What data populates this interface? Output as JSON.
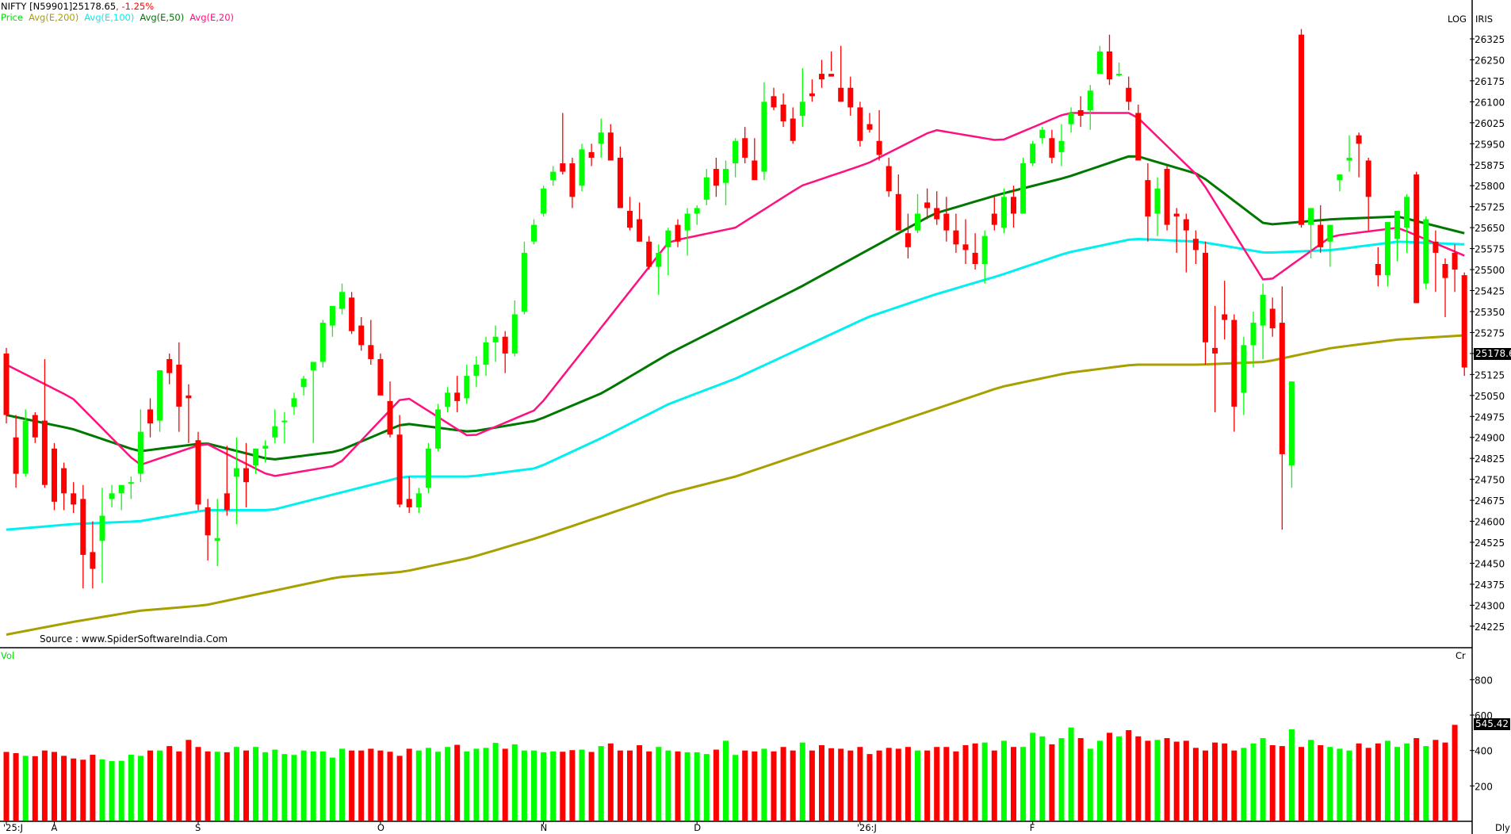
{
  "header": {
    "symbol": "NIFTY [N59901]25178.65",
    "change": ", -1.25%",
    "change_color": "#ff0000",
    "legend": [
      {
        "label": "Price",
        "color": "#00dd00"
      },
      {
        "label": "Avg(E,200)",
        "color": "#a8a000"
      },
      {
        "label": "Avg(E,100)",
        "color": "#00f0f0"
      },
      {
        "label": "Avg(E,50)",
        "color": "#007700"
      },
      {
        "label": "Avg(E,20)",
        "color": "#ff1080"
      }
    ]
  },
  "corner": {
    "log": "LOG",
    "iris": "IRIS",
    "cr": "Cr",
    "dly": "Dly"
  },
  "watermark": "Source : www.SpiderSoftwareIndia.Com",
  "volume_label": "Vol",
  "last_price_label": "25178.6",
  "last_volume_label": "545.42",
  "colors": {
    "up": "#00ff00",
    "down": "#ff0000",
    "ema20": "#ff1080",
    "ema50": "#007700",
    "ema100": "#00f0f0",
    "ema200": "#a8a000"
  },
  "chart_data": [
    {
      "type": "candlestick",
      "title": "NIFTY [N59901] 25178.65, -1.25%",
      "scale": "log",
      "ylim": [
        24150,
        26400
      ],
      "y_ticks": [
        26325,
        26250,
        26175,
        26100,
        26025,
        25950,
        25875,
        25800,
        25725,
        25650,
        25575,
        25500,
        25425,
        25350,
        25275,
        25200,
        25125,
        25050,
        24975,
        24900,
        24825,
        24750,
        24675,
        24600,
        24525,
        24450,
        24375,
        24300,
        24225
      ],
      "x_tick_labels": [
        {
          "label": "'25:J",
          "index": 0
        },
        {
          "label": "A",
          "index": 5
        },
        {
          "label": "S",
          "index": 20
        },
        {
          "label": "O",
          "index": 39
        },
        {
          "label": "N",
          "index": 56
        },
        {
          "label": "D",
          "index": 72
        },
        {
          "label": "'26:J",
          "index": 89
        },
        {
          "label": "F",
          "index": 107
        }
      ],
      "legend": [
        "Price",
        "Avg(E,200)",
        "Avg(E,100)",
        "Avg(E,50)",
        "Avg(E,20)"
      ],
      "ohlc_approx": [
        [
          25200,
          25220,
          24950,
          24980
        ],
        [
          24900,
          24980,
          24720,
          24770
        ],
        [
          24770,
          25000,
          24760,
          24960
        ],
        [
          24980,
          24990,
          24880,
          24900
        ],
        [
          24960,
          25180,
          24720,
          24730
        ],
        [
          24860,
          24880,
          24640,
          24670
        ],
        [
          24790,
          24810,
          24640,
          24700
        ],
        [
          24700,
          24740,
          24630,
          24660
        ],
        [
          24680,
          24730,
          24360,
          24480
        ],
        [
          24490,
          24600,
          24360,
          24430
        ],
        [
          24530,
          24720,
          24380,
          24620
        ],
        [
          24680,
          24730,
          24650,
          24700
        ],
        [
          24700,
          24720,
          24640,
          24730
        ],
        [
          24740,
          24760,
          24680,
          24740
        ],
        [
          24770,
          25000,
          24740,
          24920
        ],
        [
          25000,
          25040,
          24900,
          24950
        ],
        [
          24960,
          25140,
          24920,
          25140
        ],
        [
          25180,
          25200,
          25090,
          25130
        ],
        [
          25160,
          25240,
          24920,
          25010
        ],
        [
          25050,
          25090,
          24880,
          25040
        ],
        [
          24890,
          24920,
          24640,
          24660
        ],
        [
          24650,
          24680,
          24460,
          24550
        ],
        [
          24530,
          24680,
          24440,
          24540
        ],
        [
          24700,
          24870,
          24620,
          24640
        ],
        [
          24760,
          24900,
          24590,
          24790
        ],
        [
          24790,
          24880,
          24650,
          24740
        ],
        [
          24800,
          24860,
          24770,
          24860
        ],
        [
          24860,
          24890,
          24810,
          24870
        ],
        [
          24900,
          25000,
          24880,
          24940
        ],
        [
          24960,
          24990,
          24880,
          24960
        ],
        [
          25010,
          25060,
          24980,
          25040
        ],
        [
          25080,
          25120,
          25050,
          25110
        ],
        [
          25140,
          25160,
          24880,
          25170
        ],
        [
          25170,
          25320,
          25150,
          25310
        ],
        [
          25300,
          25360,
          25260,
          25370
        ],
        [
          25360,
          25450,
          25340,
          25420
        ],
        [
          25400,
          25420,
          25270,
          25280
        ],
        [
          25300,
          25330,
          25210,
          25230
        ],
        [
          25230,
          25320,
          25160,
          25180
        ],
        [
          25180,
          25200,
          25080,
          25050
        ],
        [
          25030,
          25100,
          24900,
          24910
        ],
        [
          24910,
          24980,
          24650,
          24660
        ],
        [
          24680,
          24760,
          24630,
          24650
        ],
        [
          24650,
          24720,
          24630,
          24700
        ],
        [
          24720,
          24880,
          24700,
          24860
        ],
        [
          24860,
          25020,
          24850,
          25000
        ],
        [
          25010,
          25080,
          24990,
          25060
        ],
        [
          25060,
          25120,
          24990,
          25030
        ],
        [
          25040,
          25160,
          25020,
          25120
        ],
        [
          25120,
          25190,
          25080,
          25160
        ],
        [
          25160,
          25260,
          25120,
          25240
        ],
        [
          25240,
          25300,
          25170,
          25260
        ],
        [
          25260,
          25280,
          25130,
          25200
        ],
        [
          25200,
          25390,
          25190,
          25340
        ],
        [
          25350,
          25600,
          25340,
          25560
        ],
        [
          25600,
          25680,
          25590,
          25660
        ],
        [
          25700,
          25800,
          25690,
          25790
        ],
        [
          25820,
          25870,
          25800,
          25850
        ],
        [
          25880,
          26060,
          25840,
          25850
        ],
        [
          25880,
          25900,
          25720,
          25760
        ],
        [
          25800,
          25950,
          25780,
          25930
        ],
        [
          25920,
          25950,
          25870,
          25900
        ],
        [
          25950,
          26040,
          25900,
          25990
        ],
        [
          25990,
          26020,
          25900,
          25890
        ],
        [
          25900,
          25940,
          25760,
          25720
        ],
        [
          25710,
          25760,
          25640,
          25650
        ],
        [
          25680,
          25740,
          25600,
          25600
        ],
        [
          25600,
          25620,
          25500,
          25510
        ],
        [
          25510,
          25590,
          25410,
          25560
        ],
        [
          25580,
          25650,
          25480,
          25640
        ],
        [
          25660,
          25680,
          25580,
          25600
        ],
        [
          25640,
          25720,
          25550,
          25700
        ],
        [
          25700,
          25730,
          25660,
          25720
        ],
        [
          25750,
          25860,
          25730,
          25830
        ],
        [
          25860,
          25900,
          25760,
          25800
        ],
        [
          25810,
          25890,
          25730,
          25860
        ],
        [
          25880,
          25970,
          25830,
          25960
        ],
        [
          25970,
          26010,
          25880,
          25900
        ],
        [
          25890,
          25970,
          25820,
          25820
        ],
        [
          25850,
          26170,
          25820,
          26100
        ],
        [
          26120,
          26150,
          26070,
          26080
        ],
        [
          26090,
          26130,
          26010,
          26030
        ],
        [
          26040,
          26080,
          25950,
          25960
        ],
        [
          26050,
          26220,
          26010,
          26100
        ],
        [
          26130,
          26180,
          26100,
          26120
        ],
        [
          26200,
          26250,
          26150,
          26180
        ],
        [
          26200,
          26280,
          26210,
          26190
        ],
        [
          26150,
          26300,
          26100,
          26100
        ],
        [
          26150,
          26190,
          26050,
          26080
        ],
        [
          26080,
          26100,
          25940,
          25960
        ],
        [
          26020,
          26060,
          25990,
          26000
        ],
        [
          25960,
          26070,
          25890,
          25910
        ],
        [
          25870,
          25900,
          25760,
          25780
        ],
        [
          25770,
          25840,
          25640,
          25640
        ],
        [
          25630,
          25700,
          25540,
          25580
        ],
        [
          25640,
          25770,
          25630,
          25700
        ],
        [
          25740,
          25790,
          25680,
          25720
        ],
        [
          25720,
          25780,
          25660,
          25680
        ],
        [
          25700,
          25760,
          25600,
          25640
        ],
        [
          25640,
          25700,
          25560,
          25590
        ],
        [
          25590,
          25680,
          25520,
          25570
        ],
        [
          25560,
          25630,
          25500,
          25520
        ],
        [
          25520,
          25640,
          25450,
          25620
        ],
        [
          25700,
          25760,
          25640,
          25660
        ],
        [
          25650,
          25790,
          25630,
          25760
        ],
        [
          25760,
          25800,
          25650,
          25700
        ],
        [
          25700,
          25900,
          25700,
          25880
        ],
        [
          25880,
          25960,
          25870,
          25950
        ],
        [
          25970,
          26010,
          25950,
          26000
        ],
        [
          25970,
          26000,
          25880,
          25900
        ],
        [
          25920,
          26020,
          25870,
          25960
        ],
        [
          26020,
          26080,
          25990,
          26060
        ],
        [
          26070,
          26120,
          26010,
          26050
        ],
        [
          26070,
          26160,
          26000,
          26140
        ],
        [
          26200,
          26300,
          26200,
          26280
        ],
        [
          26280,
          26340,
          26160,
          26180
        ],
        [
          26200,
          26240,
          26190,
          26200
        ],
        [
          26150,
          26190,
          26070,
          26100
        ],
        [
          26060,
          26090,
          25900,
          25890
        ],
        [
          25820,
          25880,
          25600,
          25690
        ],
        [
          25700,
          25830,
          25620,
          25790
        ],
        [
          25860,
          25870,
          25640,
          25660
        ],
        [
          25700,
          25720,
          25560,
          25690
        ],
        [
          25680,
          25700,
          25490,
          25640
        ],
        [
          25610,
          25640,
          25520,
          25570
        ],
        [
          25560,
          25600,
          25160,
          25240
        ],
        [
          25220,
          25370,
          24990,
          25200
        ],
        [
          25340,
          25460,
          25250,
          25320
        ],
        [
          25320,
          25340,
          24920,
          25010
        ],
        [
          25060,
          25260,
          24980,
          25230
        ],
        [
          25230,
          25350,
          25150,
          25310
        ],
        [
          25300,
          25450,
          25180,
          25410
        ],
        [
          25360,
          25400,
          25260,
          25290
        ],
        [
          25310,
          25440,
          24570,
          24840
        ],
        [
          24800,
          25100,
          24720,
          25100
        ],
        [
          26340,
          26360,
          25650,
          25660
        ],
        [
          25660,
          25720,
          25540,
          25720
        ],
        [
          25660,
          25730,
          25560,
          25580
        ],
        [
          25600,
          25660,
          25510,
          25660
        ],
        [
          25820,
          25840,
          25780,
          25840
        ],
        [
          25890,
          25980,
          25850,
          25900
        ],
        [
          25980,
          25990,
          25830,
          25950
        ],
        [
          25890,
          25900,
          25640,
          25760
        ],
        [
          25520,
          25580,
          25440,
          25480
        ],
        [
          25480,
          25670,
          25440,
          25670
        ],
        [
          25610,
          25700,
          25530,
          25710
        ],
        [
          25650,
          25770,
          25560,
          25760
        ],
        [
          25840,
          25850,
          25400,
          25380
        ],
        [
          25450,
          25690,
          25430,
          25680
        ],
        [
          25600,
          25640,
          25420,
          25560
        ],
        [
          25520,
          25540,
          25330,
          25470
        ],
        [
          25560,
          25590,
          25420,
          25500
        ],
        [
          25480,
          25490,
          25120,
          25150
        ]
      ],
      "ema20_approx": [
        25170,
        25120,
        25080,
        25020,
        24960,
        24920,
        24860,
        24800,
        24760,
        24750,
        24760,
        24790,
        24830,
        24850,
        24840,
        24790,
        24760,
        24750,
        24750,
        24760,
        24810,
        24860,
        24940,
        25000,
        25040,
        25040,
        25000,
        24950,
        24910,
        24900,
        24920,
        24960,
        24990,
        25070,
        25160,
        25240,
        25330,
        25420,
        25500,
        25560,
        25580,
        25590,
        25600,
        25610,
        25650,
        25710,
        25760,
        25800,
        25810,
        25840,
        25850,
        25900,
        25920,
        25970,
        26010,
        26020,
        26000,
        26010,
        25990,
        25960,
        25970,
        25960,
        25980,
        25990,
        25960,
        25980,
        26010,
        26030,
        26040,
        26050,
        26070,
        26080,
        26070,
        26040,
        25980,
        25900,
        25830,
        25760,
        25680,
        25620,
        25570,
        25560,
        25540,
        25450,
        25430,
        25450,
        25460,
        25500,
        25540,
        25570,
        25610,
        25630,
        25620,
        25620,
        25630,
        25610,
        25600,
        25580,
        25570
      ],
      "series_notes": "EMA lines drawn approx; EMA200 rises from ~24200 to ~25270; EMA100 from ~24600 to ~25590; EMA50 ~24980 peak ~25930 end ~25630."
    },
    {
      "type": "bar",
      "title": "Vol",
      "ylabel": "Cr",
      "y_ticks": [
        800,
        600,
        400,
        200
      ],
      "last_value": 545.42,
      "values_approx": [
        392,
        385,
        370,
        368,
        400,
        392,
        370,
        355,
        348,
        376,
        350,
        340,
        342,
        376,
        370,
        400,
        400,
        425,
        395,
        460,
        420,
        395,
        393,
        390,
        420,
        400,
        420,
        390,
        405,
        380,
        375,
        400,
        395,
        395,
        360,
        410,
        400,
        400,
        410,
        400,
        393,
        370,
        410,
        400,
        415,
        393,
        420,
        432,
        395,
        410,
        415,
        443,
        410,
        435,
        400,
        400,
        390,
        395,
        393,
        402,
        405,
        392,
        425,
        440,
        400,
        400,
        430,
        395,
        420,
        400,
        395,
        390,
        390,
        380,
        405,
        455,
        375,
        400,
        395,
        410,
        395,
        420,
        400,
        445,
        400,
        430,
        413,
        410,
        400,
        420,
        380,
        400,
        415,
        410,
        420,
        400,
        400,
        420,
        420,
        395,
        430,
        440,
        445,
        400,
        455,
        420,
        420,
        500,
        480,
        435,
        470,
        530,
        470,
        410,
        455,
        500,
        480,
        515,
        480,
        455,
        460,
        470,
        450,
        455,
        415,
        400,
        445,
        440,
        400,
        415,
        440,
        470,
        430,
        425,
        520,
        420,
        460,
        430,
        420,
        410,
        400,
        440,
        415,
        440,
        455,
        420,
        440,
        470,
        425,
        460,
        445,
        545
      ]
    }
  ]
}
